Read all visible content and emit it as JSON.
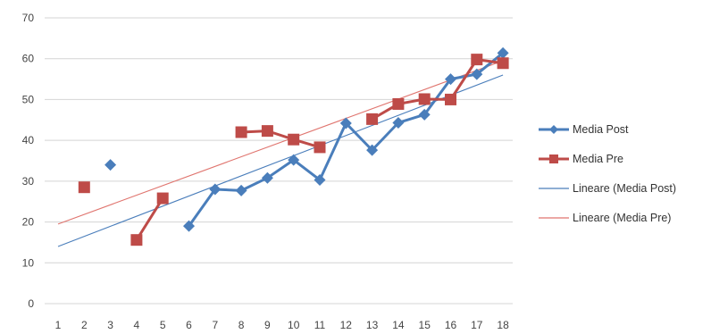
{
  "chart_data": {
    "type": "line",
    "x": [
      1,
      2,
      3,
      4,
      5,
      6,
      7,
      8,
      9,
      10,
      11,
      12,
      13,
      14,
      15,
      16,
      17,
      18
    ],
    "xlim": [
      1,
      18
    ],
    "ylim": [
      0,
      70
    ],
    "yticks": [
      0,
      10,
      20,
      30,
      40,
      50,
      60,
      70
    ],
    "grid": true,
    "legend_position": "right",
    "series": [
      {
        "name": "Media Post",
        "color": "#4a7ebb",
        "marker": "diamond",
        "values": [
          null,
          null,
          34,
          null,
          null,
          19,
          28,
          27.7,
          30.8,
          35.2,
          30.3,
          44.2,
          37.6,
          44.3,
          46.3,
          55,
          56.2,
          61.4
        ]
      },
      {
        "name": "Media Pre",
        "color": "#be4b48",
        "marker": "square",
        "values": [
          null,
          28.5,
          null,
          15.6,
          25.8,
          null,
          null,
          42,
          42.3,
          40.2,
          38.3,
          null,
          45.2,
          48.9,
          50.1,
          50,
          59.8,
          58.9
        ]
      }
    ],
    "trendlines": [
      {
        "name": "Lineare (Media Post)",
        "color": "#4a7ebb",
        "type": "linear",
        "start": [
          1,
          14
        ],
        "end": [
          18,
          56
        ]
      },
      {
        "name": "Lineare (Media Pre)",
        "color": "#e0756f",
        "type": "linear",
        "start": [
          1,
          19.5
        ],
        "end": [
          18,
          59.5
        ]
      }
    ]
  }
}
